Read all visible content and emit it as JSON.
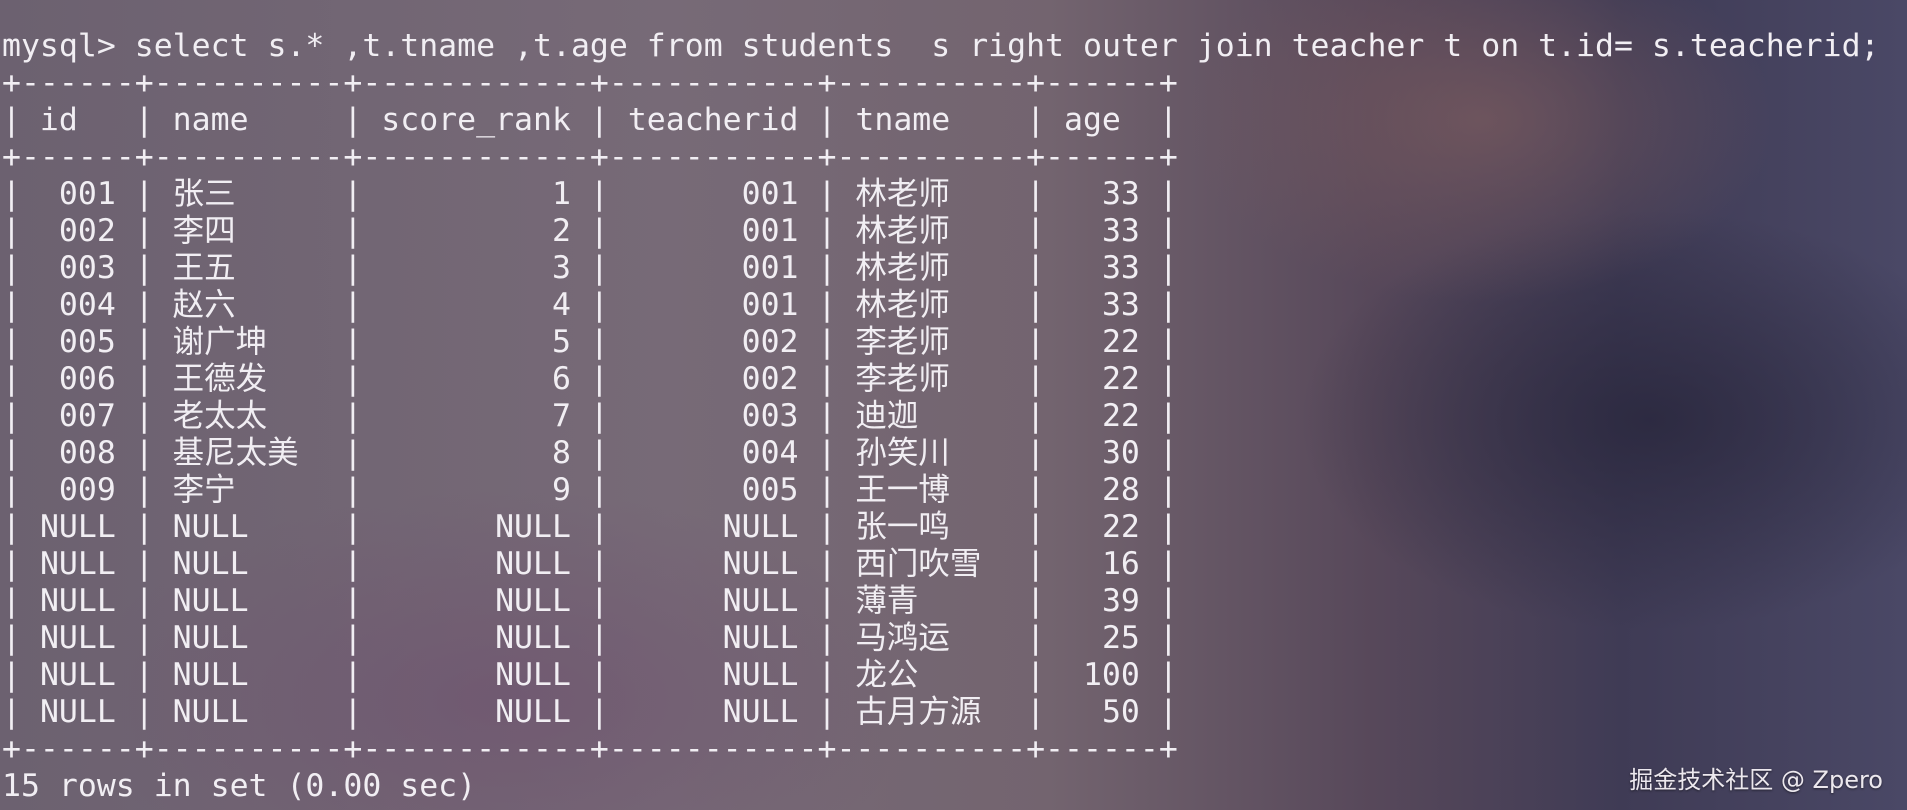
{
  "terminal": {
    "command": "mysql> select s.* ,t.tname ,t.age from students  s right outer join teacher t on t.id= s.teacherid;",
    "footer": "15 rows in set (0.00 sec)"
  },
  "table": {
    "columns": [
      "id",
      "name",
      "score_rank",
      "teacherid",
      "tname",
      "age"
    ],
    "rows": [
      [
        "001",
        "张三",
        "1",
        "001",
        "林老师",
        "33"
      ],
      [
        "002",
        "李四",
        "2",
        "001",
        "林老师",
        "33"
      ],
      [
        "003",
        "王五",
        "3",
        "001",
        "林老师",
        "33"
      ],
      [
        "004",
        "赵六",
        "4",
        "001",
        "林老师",
        "33"
      ],
      [
        "005",
        "谢广坤",
        "5",
        "002",
        "李老师",
        "22"
      ],
      [
        "006",
        "王德发",
        "6",
        "002",
        "李老师",
        "22"
      ],
      [
        "007",
        "老太太",
        "7",
        "003",
        "迪迦",
        "22"
      ],
      [
        "008",
        "基尼太美",
        "8",
        "004",
        "孙笑川",
        "30"
      ],
      [
        "009",
        "李宁",
        "9",
        "005",
        "王一博",
        "28"
      ],
      [
        "NULL",
        "NULL",
        "NULL",
        "NULL",
        "张一鸣",
        "22"
      ],
      [
        "NULL",
        "NULL",
        "NULL",
        "NULL",
        "西门吹雪",
        "16"
      ],
      [
        "NULL",
        "NULL",
        "NULL",
        "NULL",
        "薄青",
        "39"
      ],
      [
        "NULL",
        "NULL",
        "NULL",
        "NULL",
        "马鸿运",
        "25"
      ],
      [
        "NULL",
        "NULL",
        "NULL",
        "NULL",
        "龙公",
        "100"
      ],
      [
        "NULL",
        "NULL",
        "NULL",
        "NULL",
        "古月方源",
        "50"
      ]
    ]
  },
  "watermark": "掘金技术社区 @ Zpero"
}
